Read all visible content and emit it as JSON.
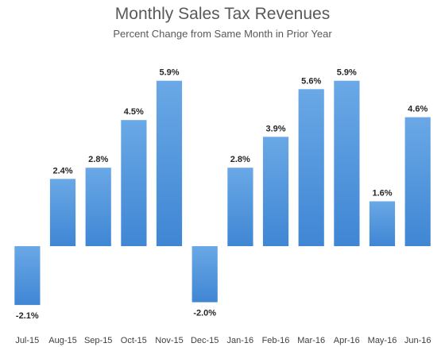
{
  "chart_data": {
    "type": "bar",
    "title": "Monthly Sales Tax Revenues",
    "subtitle": "Percent Change from Same Month in Prior Year",
    "xlabel": "",
    "ylabel": "",
    "categories": [
      "Jul-15",
      "Aug-15",
      "Sep-15",
      "Oct-15",
      "Nov-15",
      "Dec-15",
      "Jan-16",
      "Feb-16",
      "Mar-16",
      "Apr-16",
      "May-16",
      "Jun-16"
    ],
    "values": [
      -2.1,
      2.4,
      2.8,
      4.5,
      5.9,
      -2.0,
      2.8,
      3.9,
      5.6,
      5.9,
      1.6,
      4.6
    ],
    "value_labels": [
      "-2.1%",
      "2.4%",
      "2.8%",
      "4.5%",
      "5.9%",
      "-2.0%",
      "2.8%",
      "3.9%",
      "5.6%",
      "5.9%",
      "1.6%",
      "4.6%"
    ],
    "ylim": [
      -2.6,
      6.5
    ],
    "grid": false,
    "legend": "none",
    "bar_color": "#4a90d9",
    "bar_color_light": "#6aa8e6"
  }
}
